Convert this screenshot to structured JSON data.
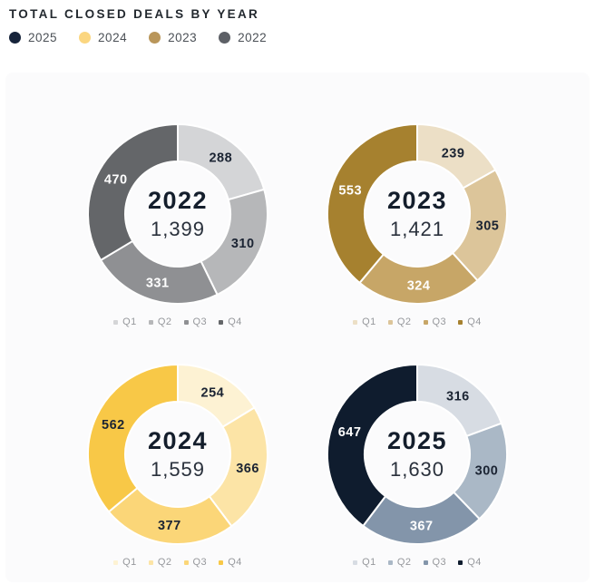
{
  "page": {
    "title": "TOTAL CLOSED DEALS BY YEAR"
  },
  "year_legend": [
    {
      "label": "2025",
      "color": "#16233a"
    },
    {
      "label": "2024",
      "color": "#fbd680"
    },
    {
      "label": "2023",
      "color": "#b9965a"
    },
    {
      "label": "2022",
      "color": "#5d6066"
    }
  ],
  "quarter_labels": [
    "Q1",
    "Q2",
    "Q3",
    "Q4"
  ],
  "chart_data": [
    {
      "type": "pie",
      "variant": "donut",
      "title": "2022",
      "year": "2022",
      "total": 1399,
      "total_formatted": "1,399",
      "categories": [
        "Q1",
        "Q2",
        "Q3",
        "Q4"
      ],
      "values": [
        288,
        310,
        331,
        470
      ],
      "colors": [
        "#d4d5d7",
        "#b6b7b9",
        "#8f9093",
        "#646669"
      ],
      "label_colors": [
        "#1b2433",
        "#1b2433",
        "#ffffff",
        "#ffffff"
      ],
      "start_angle_deg": 0,
      "direction": "clockwise",
      "legend_position": "bottom"
    },
    {
      "type": "pie",
      "variant": "donut",
      "title": "2023",
      "year": "2023",
      "total": 1421,
      "total_formatted": "1,421",
      "categories": [
        "Q1",
        "Q2",
        "Q3",
        "Q4"
      ],
      "values": [
        239,
        305,
        324,
        553
      ],
      "colors": [
        "#ecdfc6",
        "#dcc59a",
        "#c7a667",
        "#a6812f"
      ],
      "label_colors": [
        "#1b2433",
        "#1b2433",
        "#ffffff",
        "#ffffff"
      ],
      "start_angle_deg": 0,
      "direction": "clockwise",
      "legend_position": "bottom"
    },
    {
      "type": "pie",
      "variant": "donut",
      "title": "2024",
      "year": "2024",
      "total": 1559,
      "total_formatted": "1,559",
      "categories": [
        "Q1",
        "Q2",
        "Q3",
        "Q4"
      ],
      "values": [
        254,
        366,
        377,
        562
      ],
      "colors": [
        "#fdf2d3",
        "#fce4a6",
        "#fbd678",
        "#f8c847"
      ],
      "label_colors": [
        "#1b2433",
        "#1b2433",
        "#1b2433",
        "#1b2433"
      ],
      "start_angle_deg": 0,
      "direction": "clockwise",
      "legend_position": "bottom"
    },
    {
      "type": "pie",
      "variant": "donut",
      "title": "2025",
      "year": "2025",
      "total": 1630,
      "total_formatted": "1,630",
      "categories": [
        "Q1",
        "Q2",
        "Q3",
        "Q4"
      ],
      "values": [
        316,
        300,
        367,
        647
      ],
      "colors": [
        "#d7dce3",
        "#aab8c6",
        "#8395aa",
        "#0f1c2e"
      ],
      "label_colors": [
        "#1b2433",
        "#1b2433",
        "#ffffff",
        "#ffffff"
      ],
      "start_angle_deg": 0,
      "direction": "clockwise",
      "legend_position": "bottom"
    }
  ]
}
